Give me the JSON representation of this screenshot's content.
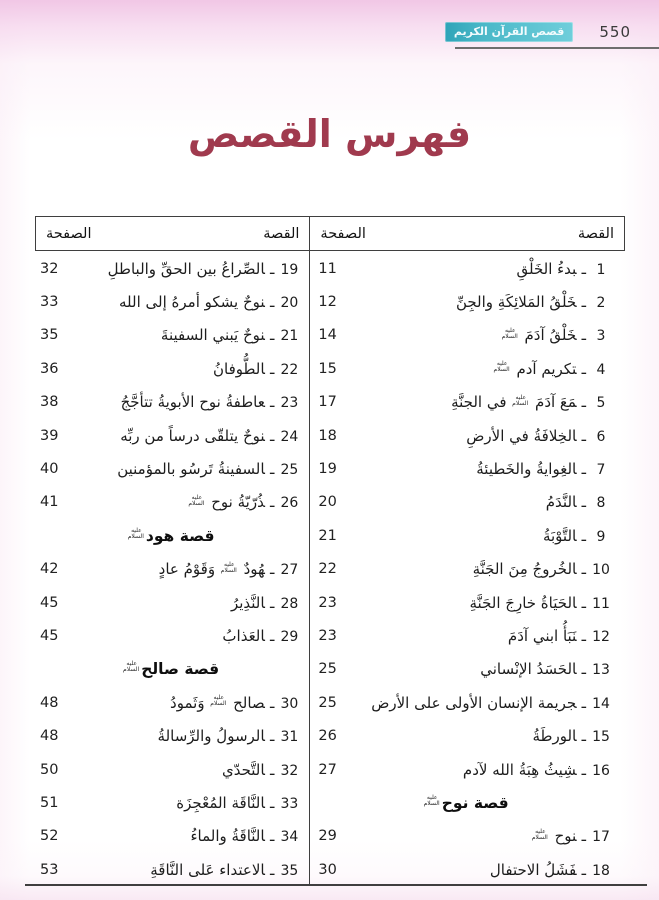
{
  "page": {
    "number": "550",
    "badge": "قصص القرآن الكريم",
    "title": "فهرس القصص"
  },
  "table": {
    "col_story": "القصة",
    "col_page": "الصفحة",
    "dash": "ـ",
    "honorific": "عليه السلام",
    "right_column": {
      "items": [
        {
          "type": "entry",
          "num": "1",
          "title": "بدءُ الخَلْقِ",
          "page": "11"
        },
        {
          "type": "entry",
          "num": "2",
          "title": "خَلْقُ المَلائِكَةِ والجِنِّ",
          "page": "12"
        },
        {
          "type": "entry",
          "num": "3",
          "title": "خَلْقُ آدَمَ {as}",
          "page": "14"
        },
        {
          "type": "entry",
          "num": "4",
          "title": "تكريم آدم {as}",
          "page": "15"
        },
        {
          "type": "entry",
          "num": "5",
          "title": "مَعَ آدَمَ {as} في الجنَّةِ",
          "page": "17"
        },
        {
          "type": "entry",
          "num": "6",
          "title": "الخِلافَةُ في الأرضِ",
          "page": "18"
        },
        {
          "type": "entry",
          "num": "7",
          "title": "الغِوايةُ والخَطيئةُ",
          "page": "19"
        },
        {
          "type": "entry",
          "num": "8",
          "title": "النَّدَمُ",
          "page": "20"
        },
        {
          "type": "entry",
          "num": "9",
          "title": "التَّوْبَةُ",
          "page": "21"
        },
        {
          "type": "entry",
          "num": "10",
          "title": "الخُروجُ مِنَ الجَنَّةِ",
          "page": "22"
        },
        {
          "type": "entry",
          "num": "11",
          "title": "الحَيَاةُ خارِجَ الجَنَّةِ",
          "page": "23"
        },
        {
          "type": "entry",
          "num": "12",
          "title": "نَبَأُ ابني آدَمَ",
          "page": "23"
        },
        {
          "type": "entry",
          "num": "13",
          "title": "الحَسَدُ الإنْساني",
          "page": "25"
        },
        {
          "type": "entry",
          "num": "14",
          "title": "جريمة الإنسان الأولى على الأرض",
          "page": "25"
        },
        {
          "type": "entry",
          "num": "15",
          "title": "الورطَةُ",
          "page": "26"
        },
        {
          "type": "entry",
          "num": "16",
          "title": "شِيثُ هِبَةُ الله لآدم",
          "page": "27"
        },
        {
          "type": "header",
          "title": "قصة نوح {as}"
        },
        {
          "type": "entry",
          "num": "17",
          "title": "نوح {as}",
          "page": "29"
        },
        {
          "type": "entry",
          "num": "18",
          "title": "فَشَلُ الاحتفال",
          "page": "30"
        }
      ]
    },
    "left_column": {
      "items": [
        {
          "type": "entry",
          "num": "19",
          "title": "الصِّراعُ بين الحقِّ والباطلِ",
          "page": "32"
        },
        {
          "type": "entry",
          "num": "20",
          "title": "نوحٌ يشكو أمرهُ إلى الله",
          "page": "33"
        },
        {
          "type": "entry",
          "num": "21",
          "title": "نوحٌ يَبني السفينةَ",
          "page": "35"
        },
        {
          "type": "entry",
          "num": "22",
          "title": "الطُّوفانُ",
          "page": "36"
        },
        {
          "type": "entry",
          "num": "23",
          "title": "عاطفةُ نوح الأبويةُ تتأجَّجُ",
          "page": "38"
        },
        {
          "type": "entry",
          "num": "24",
          "title": "نوحٌ يتلقّى درساً من ربِّه",
          "page": "39"
        },
        {
          "type": "entry",
          "num": "25",
          "title": "السفينةُ تَرسُو بالمؤمنين",
          "page": "40"
        },
        {
          "type": "entry",
          "num": "26",
          "title": "ذُرّيّةُ نوح {as}",
          "page": "41"
        },
        {
          "type": "header",
          "title": "قصة هود {as}"
        },
        {
          "type": "entry",
          "num": "27",
          "title": "هُودٌ {as} وَقَوْمُ عادٍ",
          "page": "42"
        },
        {
          "type": "entry",
          "num": "28",
          "title": "النَّذِيرُ",
          "page": "45"
        },
        {
          "type": "entry",
          "num": "29",
          "title": "العَذابُ",
          "page": "45"
        },
        {
          "type": "header",
          "title": "قصة صالح {as}"
        },
        {
          "type": "entry",
          "num": "30",
          "title": "صالح {as} وَثَمودُ",
          "page": "48"
        },
        {
          "type": "entry",
          "num": "31",
          "title": "الرسولُ والرِّسالةُ",
          "page": "48"
        },
        {
          "type": "entry",
          "num": "32",
          "title": "التَّحدّي",
          "page": "50"
        },
        {
          "type": "entry",
          "num": "33",
          "title": "النَّاقَة المُعْجِزَة",
          "page": "51"
        },
        {
          "type": "entry",
          "num": "34",
          "title": "النَّاقَةُ والماءُ",
          "page": "52"
        },
        {
          "type": "entry",
          "num": "35",
          "title": "الاعتداء عَلى النَّاقَةِ",
          "page": "53"
        }
      ]
    }
  }
}
